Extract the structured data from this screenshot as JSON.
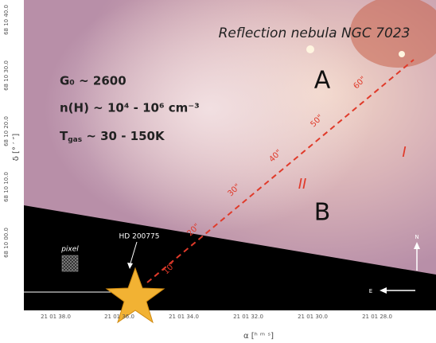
{
  "title": "Reflection nebula NGC 7023",
  "regions": [
    "A",
    "B"
  ],
  "zones": [
    "I",
    "II"
  ],
  "conditions": [
    "G₀ ~ 2600",
    "n(H) ~ 10⁴ - 10⁶ cm⁻³",
    {
      "main": "T",
      "sub": "gas",
      "rest": " ~ 30 - 150K"
    }
  ],
  "cut_labels": [
    "10\"",
    "20\"",
    "30\"",
    "40\"",
    "50\"",
    "60\""
  ],
  "star_label": "HD 200775",
  "pixel_label": "pixel",
  "compass": {
    "north": "N",
    "east": "E"
  },
  "x_axis": {
    "label": "α [ʰ ᵐ ˢ]",
    "ticks": [
      "21 01 38.0",
      "21 01 36.0",
      "21 01 34.0",
      "21 01 32.0",
      "21 01 30.0",
      "21 01 28.0"
    ]
  },
  "y_axis": {
    "label": "δ [° ′ ″]",
    "ticks": [
      "68 10 40.0",
      "68 10 30.0",
      "68 10 20.0",
      "68 10 10.0",
      "68 10 00.0"
    ]
  }
}
